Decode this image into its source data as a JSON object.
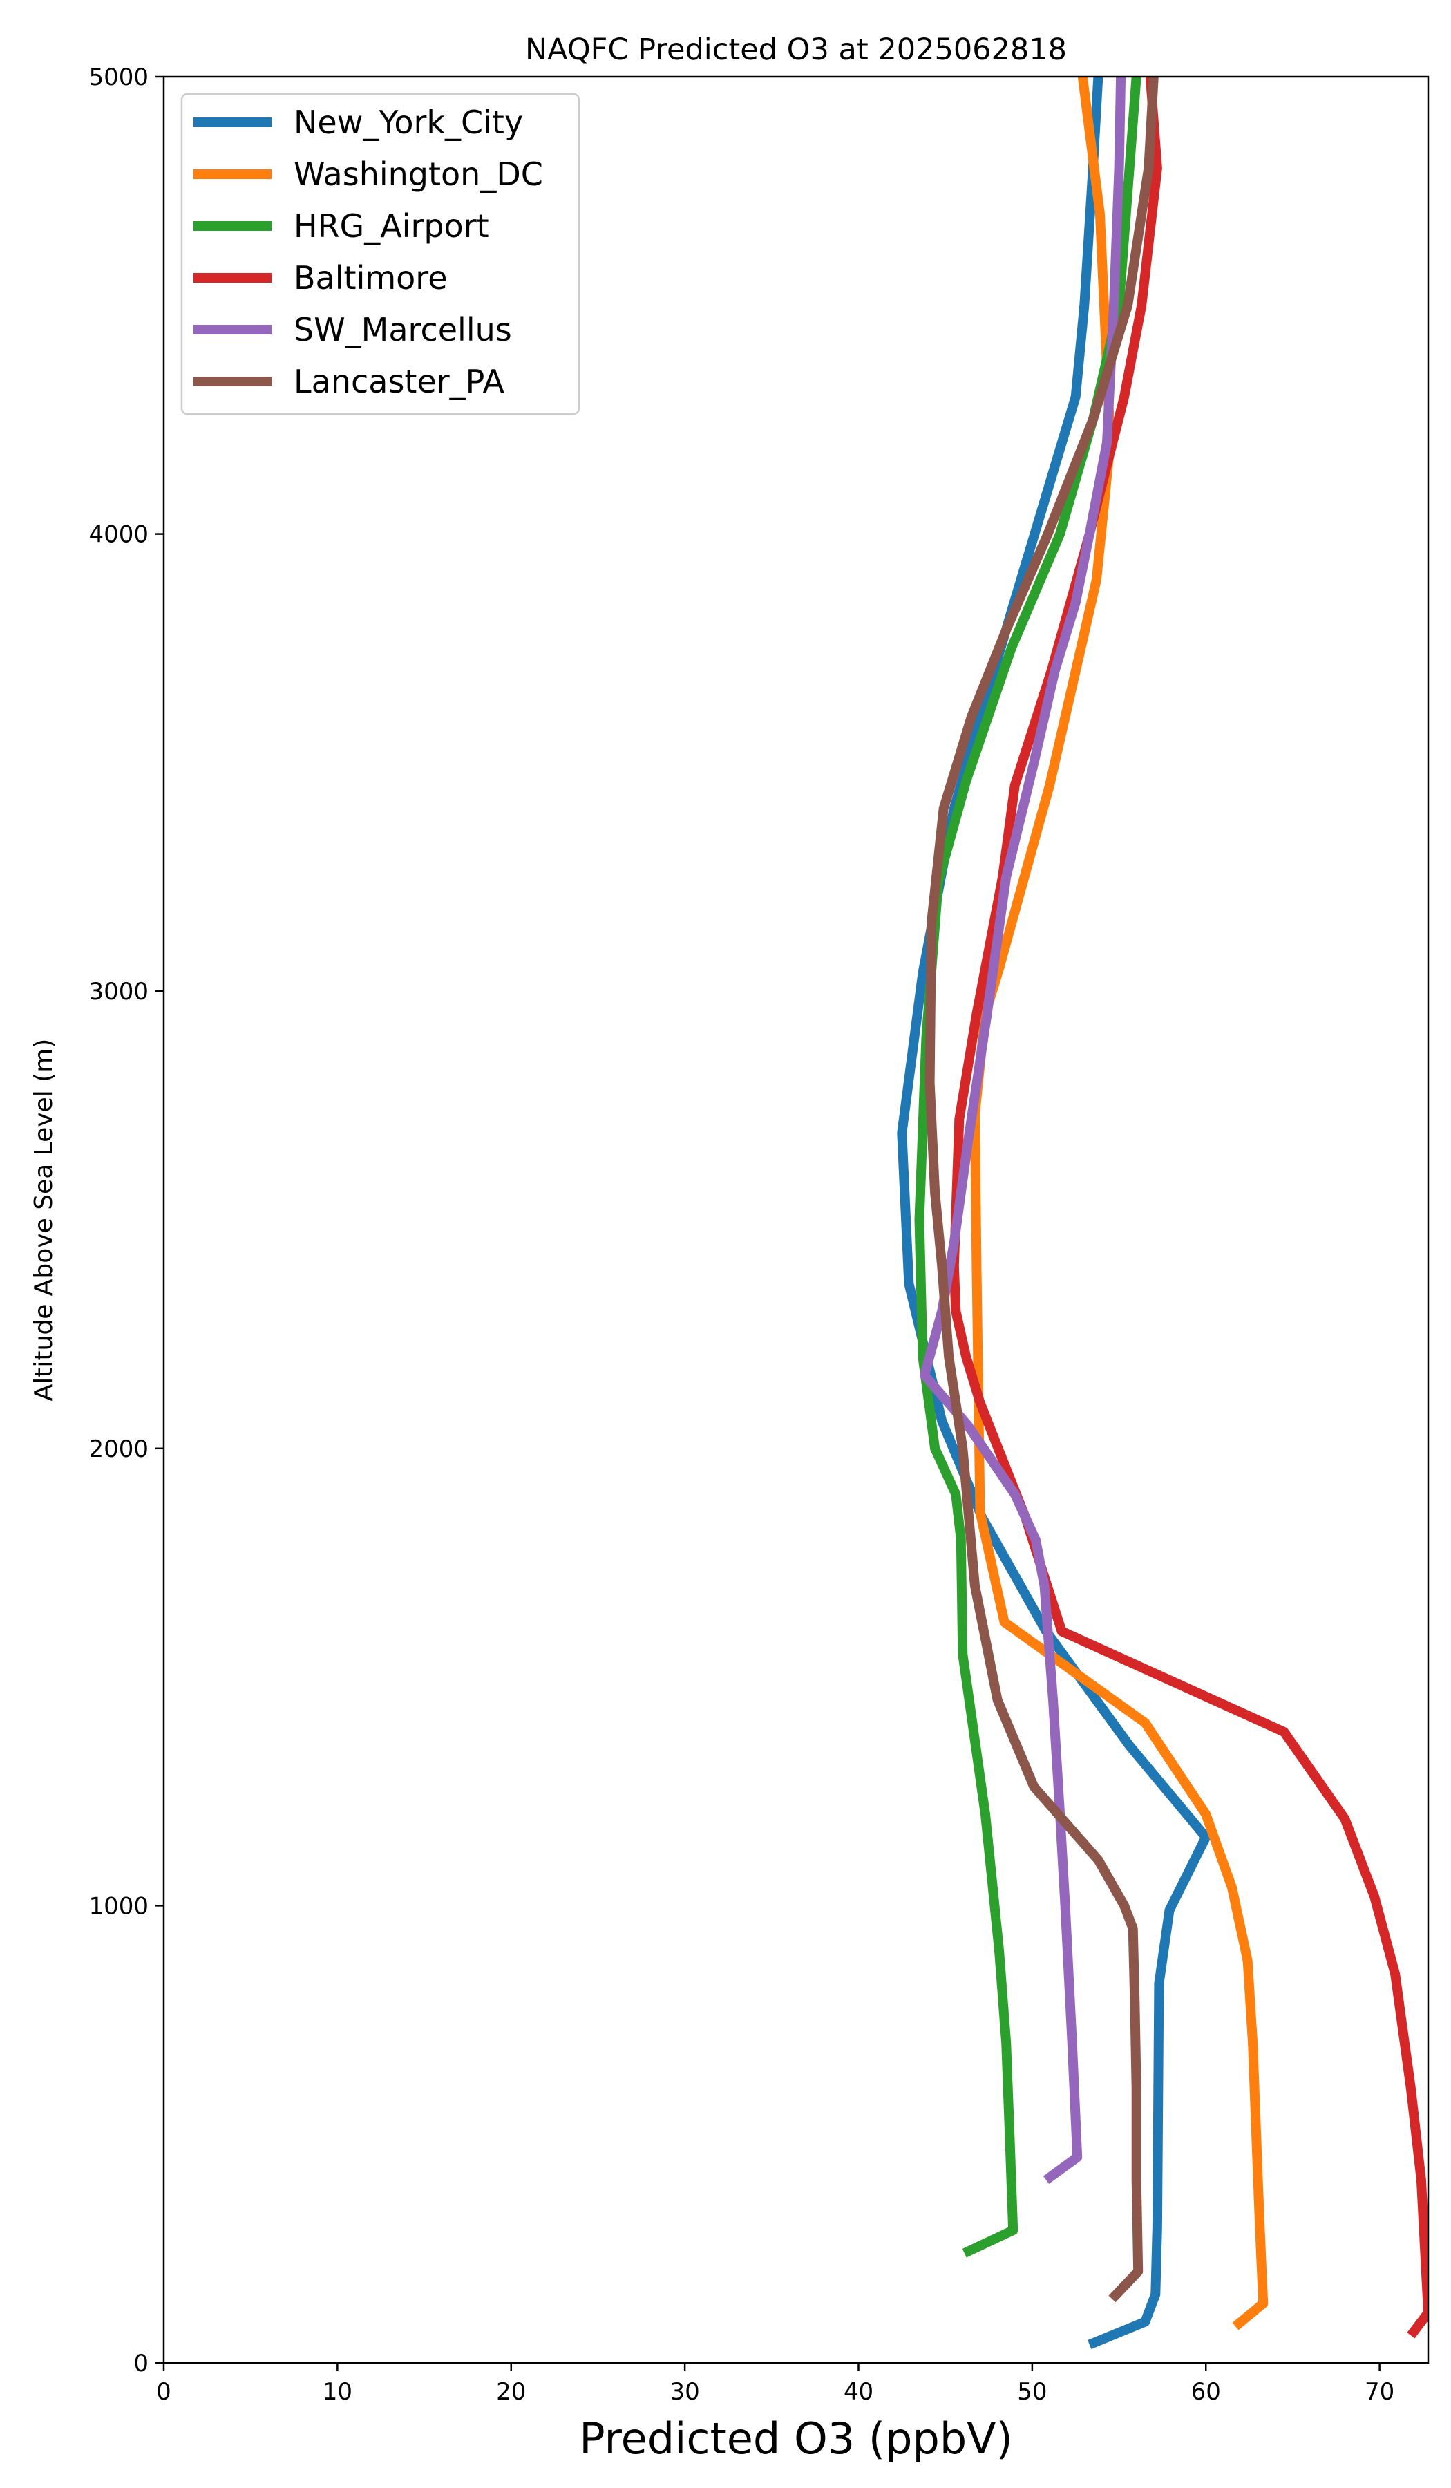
{
  "chart_data": {
    "type": "line",
    "title": "NAQFC Predicted O3 at 2025062818",
    "xlabel": "Predicted O3 (ppbV)",
    "ylabel": "Altitude Above Sea Level (m)",
    "xlim": [
      0,
      72.8
    ],
    "ylim": [
      0,
      5000
    ],
    "xticks": [
      0,
      10,
      20,
      30,
      40,
      50,
      60,
      70
    ],
    "yticks": [
      0,
      1000,
      2000,
      3000,
      4000,
      5000
    ],
    "grid": false,
    "legend_position": "upper-left",
    "series": [
      {
        "name": "New_York_City",
        "color": "#1f77b4",
        "x": [
          53.3,
          56.5,
          57.1,
          57.2,
          57.3,
          57.9,
          60.0,
          55.6,
          50.8,
          47.1,
          44.8,
          42.9,
          42.5,
          43.7,
          45.5,
          48.8,
          52.5,
          53.0,
          53.5,
          53.8
        ],
        "y": [
          40,
          90,
          150,
          300,
          830,
          990,
          1150,
          1350,
          1600,
          1850,
          2060,
          2360,
          2690,
          3040,
          3400,
          3830,
          4300,
          4500,
          4800,
          5000
        ]
      },
      {
        "name": "Washington_DC",
        "color": "#ff7f0e",
        "x": [
          61.7,
          63.3,
          63.1,
          62.9,
          62.7,
          62.4,
          61.5,
          60.0,
          56.5,
          48.4,
          47.0,
          46.8,
          46.7,
          47.3,
          48.1,
          51.0,
          53.7,
          54.5,
          53.9,
          52.9
        ],
        "y": [
          80,
          130,
          300,
          500,
          700,
          880,
          1040,
          1200,
          1400,
          1620,
          1860,
          2400,
          2730,
          2950,
          3050,
          3450,
          3900,
          4200,
          4700,
          5000
        ]
      },
      {
        "name": "HRG_Airport",
        "color": "#2ca02c",
        "x": [
          46.1,
          48.9,
          48.7,
          48.5,
          48.1,
          47.7,
          47.3,
          46.0,
          45.9,
          45.6,
          44.4,
          43.7,
          43.5,
          43.9,
          44.6,
          46.2,
          48.8,
          51.6,
          53.5,
          55.0,
          56.0
        ],
        "y": [
          240,
          290,
          500,
          700,
          900,
          1050,
          1200,
          1550,
          1800,
          1900,
          2000,
          2200,
          2500,
          2900,
          3240,
          3460,
          3750,
          4000,
          4250,
          4500,
          5000
        ]
      },
      {
        "name": "Baltimore",
        "color": "#d62728",
        "x": [
          71.8,
          72.8,
          72.4,
          71.8,
          70.9,
          69.7,
          68.0,
          64.5,
          51.7,
          49.6,
          47.0,
          46.2,
          45.6,
          45.5,
          45.8,
          46.8,
          48.3,
          49.0,
          51.1,
          53.3,
          55.3,
          56.3,
          57.2,
          56.8
        ],
        "y": [
          60,
          110,
          400,
          600,
          850,
          1020,
          1190,
          1380,
          1600,
          1850,
          2100,
          2200,
          2300,
          2400,
          2720,
          2950,
          3250,
          3450,
          3700,
          4000,
          4300,
          4500,
          4800,
          5000
        ]
      },
      {
        "name": "SW_Marcellus",
        "color": "#9467bd",
        "x": [
          50.8,
          52.6,
          52.3,
          51.9,
          51.6,
          51.2,
          50.7,
          50.2,
          49.0,
          46.3,
          43.8,
          44.8,
          45.5,
          46.3,
          47.4,
          48.5,
          50.1,
          51.3,
          52.5,
          53.3,
          54.3,
          54.7,
          55.0,
          55.1
        ],
        "y": [
          400,
          450,
          700,
          1000,
          1200,
          1450,
          1700,
          1800,
          1900,
          2050,
          2160,
          2300,
          2450,
          2670,
          2950,
          3250,
          3500,
          3700,
          3850,
          4000,
          4200,
          4500,
          4800,
          5000
        ]
      },
      {
        "name": "Lancaster_PA",
        "color": "#8c564b",
        "x": [
          54.6,
          56.1,
          56.0,
          56.0,
          55.9,
          55.8,
          55.3,
          53.8,
          50.1,
          48.0,
          46.7,
          46.0,
          45.2,
          44.8,
          44.4,
          44.1,
          44.2,
          44.9,
          46.5,
          48.5,
          50.9,
          53.5,
          55.5,
          56.7,
          57.0
        ],
        "y": [
          140,
          200,
          400,
          600,
          800,
          950,
          1000,
          1100,
          1260,
          1450,
          1700,
          2000,
          2200,
          2400,
          2560,
          2800,
          3150,
          3400,
          3600,
          3790,
          4000,
          4250,
          4500,
          4800,
          5000
        ]
      }
    ]
  }
}
